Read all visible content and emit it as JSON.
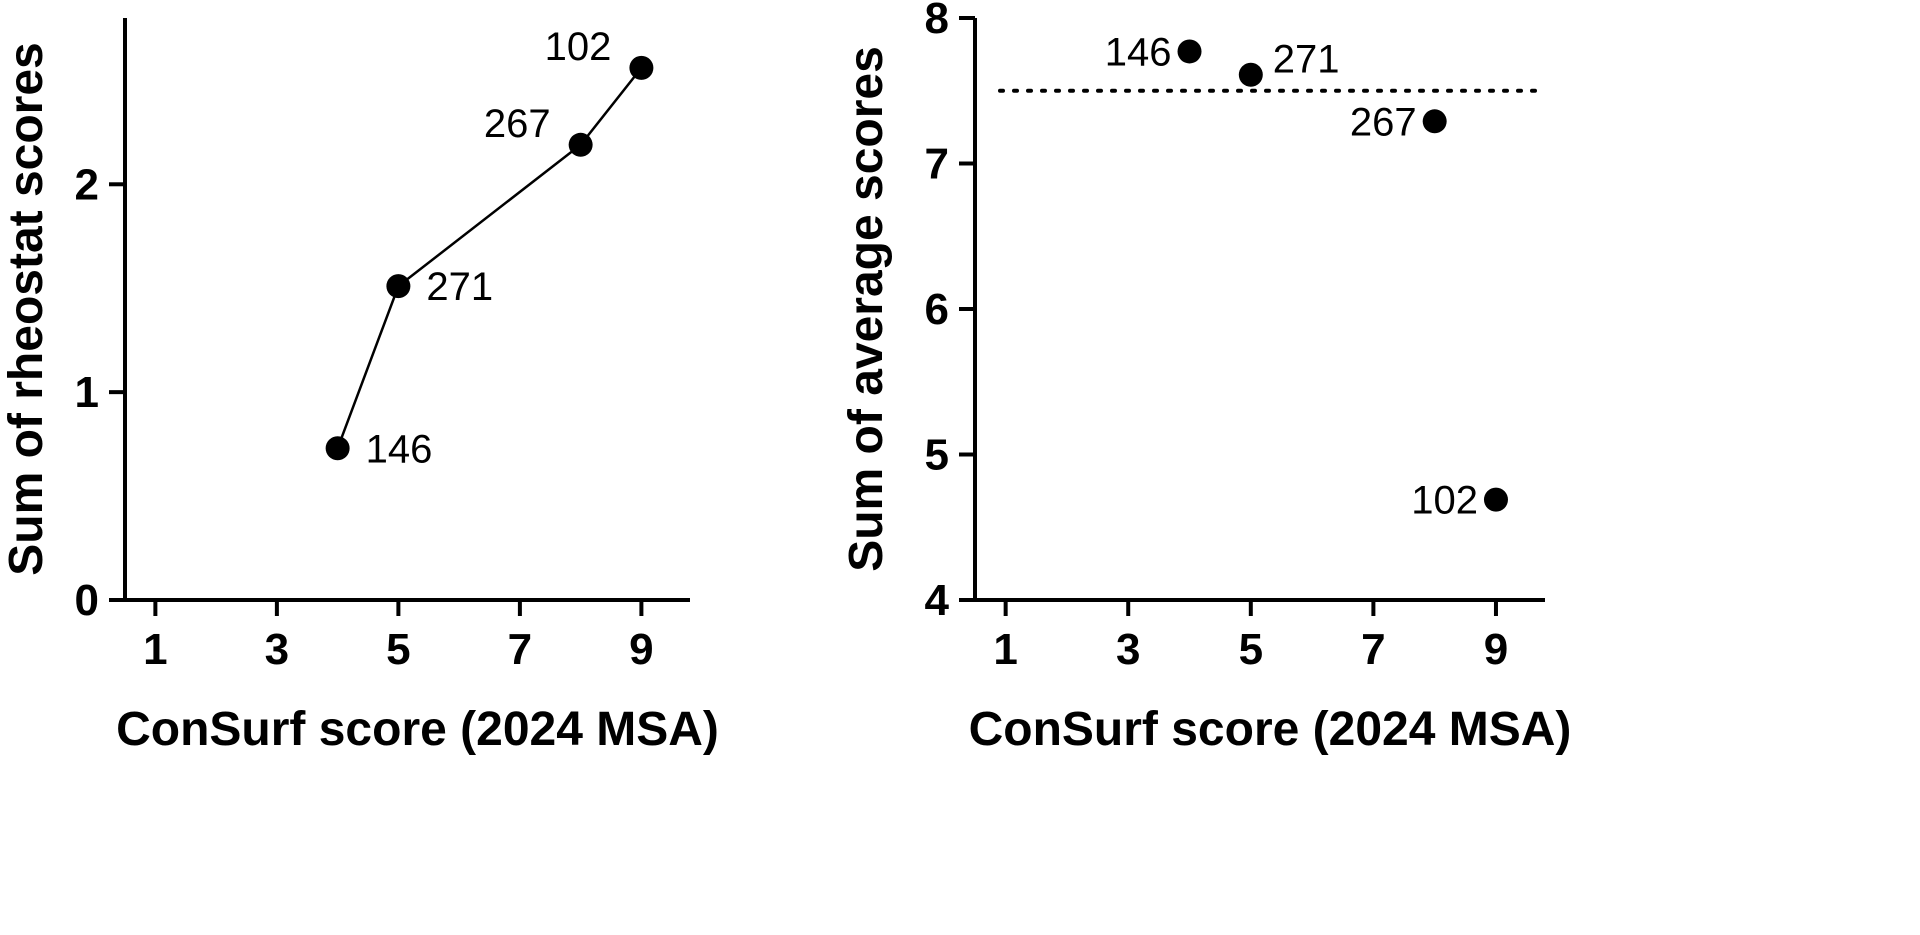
{
  "chart_data": [
    {
      "type": "line",
      "xlabel": "ConSurf score (2024 MSA)",
      "ylabel": "Sum of rheostat scores",
      "xlim": [
        0.5,
        9.8
      ],
      "ylim": [
        0,
        2.8
      ],
      "xticks": [
        1,
        3,
        5,
        7,
        9
      ],
      "yticks": [
        0,
        1,
        2
      ],
      "grid": false,
      "series": [
        {
          "name": "rheostat",
          "points": [
            {
              "x": 4,
              "y": 0.73,
              "label": "146",
              "label_pos": "right"
            },
            {
              "x": 5,
              "y": 1.51,
              "label": "271",
              "label_pos": "right"
            },
            {
              "x": 8,
              "y": 2.19,
              "label": "267",
              "label_pos": "upper-left"
            },
            {
              "x": 9,
              "y": 2.56,
              "label": "102",
              "label_pos": "upper-left"
            }
          ]
        }
      ]
    },
    {
      "type": "scatter",
      "xlabel": "ConSurf score (2024 MSA)",
      "ylabel": "Sum of average scores",
      "xlim": [
        0.5,
        9.8
      ],
      "ylim": [
        4,
        8
      ],
      "xticks": [
        1,
        3,
        5,
        7,
        9
      ],
      "yticks": [
        4,
        5,
        6,
        7,
        8
      ],
      "grid": false,
      "reference_line": {
        "y": 7.5,
        "style": "dotted"
      },
      "series": [
        {
          "name": "average",
          "points": [
            {
              "x": 4,
              "y": 7.77,
              "label": "146",
              "label_pos": "left"
            },
            {
              "x": 5,
              "y": 7.61,
              "label": "271",
              "label_pos": "upper-right"
            },
            {
              "x": 8,
              "y": 7.29,
              "label": "267",
              "label_pos": "left"
            },
            {
              "x": 9,
              "y": 4.69,
              "label": "102",
              "label_pos": "left"
            }
          ]
        }
      ]
    }
  ]
}
